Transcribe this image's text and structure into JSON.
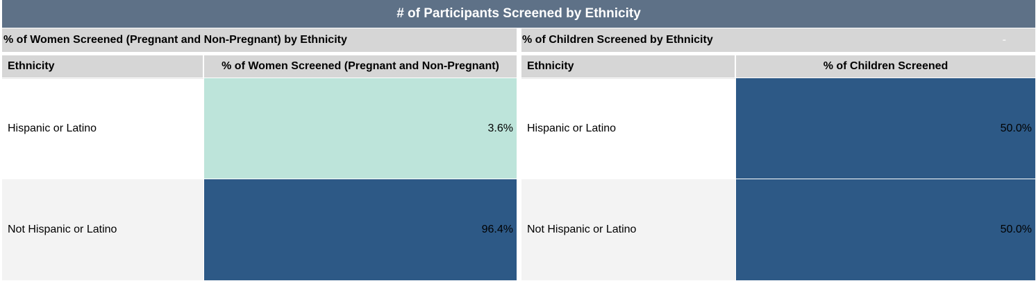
{
  "title": "# of Participants Screened by Ethnicity",
  "women": {
    "header": "% of Women Screened (Pregnant and Non-Pregnant) by Ethnicity",
    "col_name": "Ethnicity",
    "col_value": "% of Women Screened (Pregnant and Non-Pregnant)",
    "rows": [
      {
        "label": "Hispanic or Latino",
        "value": "3.6%",
        "fill": "#bde4da"
      },
      {
        "label": "Not Hispanic or Latino",
        "value": "96.4%",
        "fill": "#2d5986"
      }
    ]
  },
  "children": {
    "header": "% of Children Screened by Ethnicity",
    "dash": "-",
    "col_name": "Ethnicity",
    "col_value": "% of Children Screened",
    "rows": [
      {
        "label": "Hispanic or Latino",
        "value": "50.0%",
        "fill": "#2d5986"
      },
      {
        "label": "Not Hispanic or Latino",
        "value": "50.0%",
        "fill": "#2d5986"
      }
    ]
  }
}
